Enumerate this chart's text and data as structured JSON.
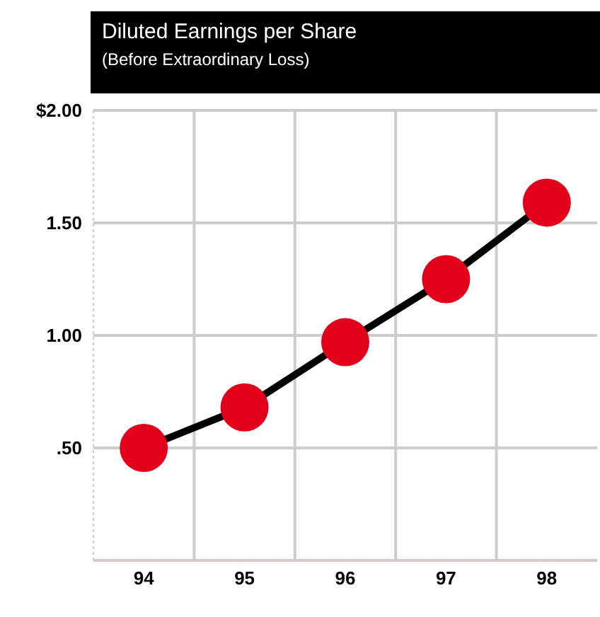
{
  "chart_data": {
    "type": "line",
    "title": "Diluted Earnings per Share",
    "subtitle": "(Before Extraordinary Loss)",
    "categories": [
      "94",
      "95",
      "96",
      "97",
      "98"
    ],
    "series": [
      {
        "color": "#e2001a",
        "values": [
          0.5,
          0.68,
          0.97,
          1.25,
          1.59
        ]
      }
    ],
    "ylim": [
      0,
      2
    ],
    "yticks": [
      {
        "value": 0,
        "label": null
      },
      {
        "value": 0.5,
        "label": ".50"
      },
      {
        "value": 1,
        "label": "1.00"
      },
      {
        "value": 1.5,
        "label": "1.50"
      },
      {
        "value": 2,
        "label": "$2.00"
      }
    ],
    "grid": true,
    "marker": "circle",
    "line_style": "solid",
    "legend": false
  }
}
